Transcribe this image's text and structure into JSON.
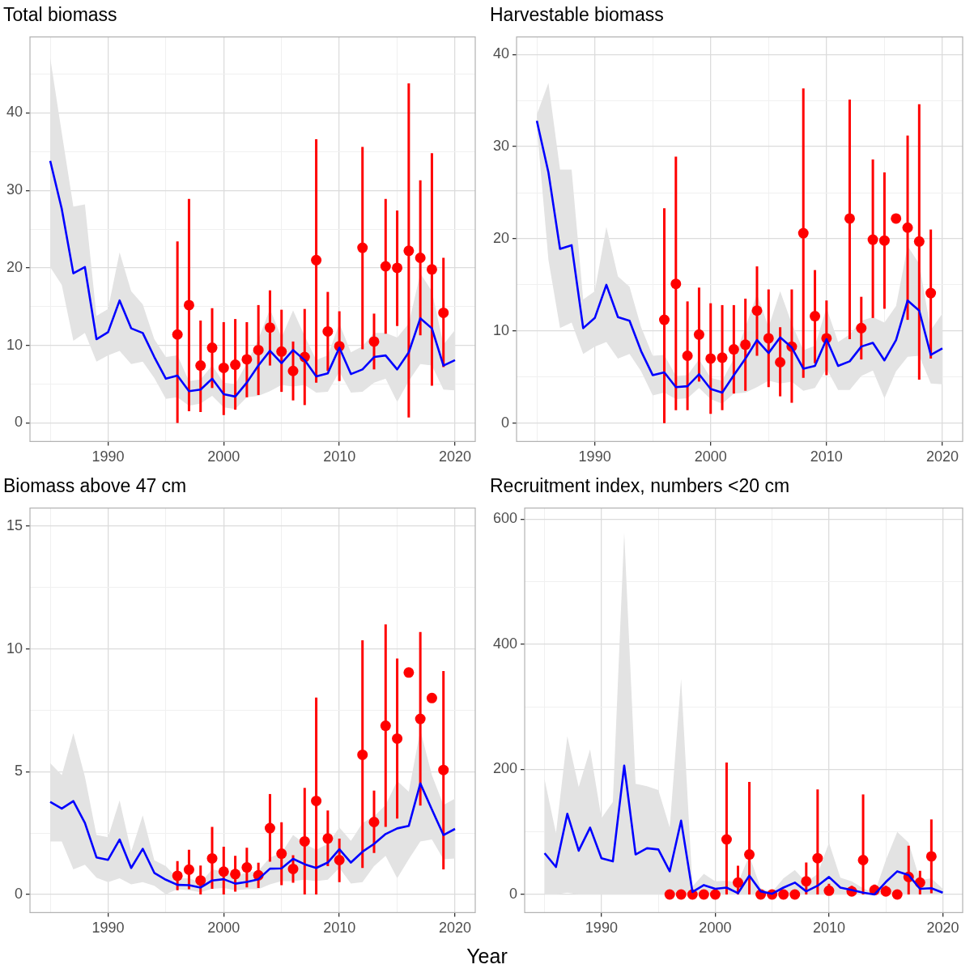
{
  "chart_data": [
    {
      "type": "line",
      "title": "Total biomass",
      "x": [
        1985,
        1986,
        1987,
        1988,
        1989,
        1990,
        1991,
        1992,
        1993,
        1994,
        1995,
        1996,
        1997,
        1998,
        1999,
        2000,
        2001,
        2002,
        2003,
        2004,
        2005,
        2006,
        2007,
        2008,
        2009,
        2010,
        2011,
        2012,
        2013,
        2014,
        2015,
        2016,
        2017,
        2018,
        2019,
        2020
      ],
      "xlim": [
        1983.25,
        2021.75
      ],
      "xticks": [
        {
          "value": 1985,
          "label": null
        },
        1990,
        {
          "value": 1995,
          "label": null
        },
        2000,
        {
          "value": 2005,
          "label": null
        },
        2010,
        {
          "value": 2015,
          "label": null
        },
        2020
      ],
      "ylim": [
        -2.4,
        49.8
      ],
      "yticks": [
        0,
        {
          "value": 5,
          "label": null
        },
        10,
        {
          "value": 15,
          "label": null
        },
        20,
        {
          "value": 25,
          "label": null
        },
        30,
        {
          "value": 35,
          "label": null
        },
        40,
        {
          "value": 45,
          "label": null
        }
      ],
      "grid": true,
      "series": [
        {
          "color": "#0000ff",
          "values": [
            33.8,
            27.6,
            19.3,
            20.1,
            10.8,
            11.7,
            15.8,
            12.2,
            11.6,
            8.5,
            5.7,
            6.1,
            4.1,
            4.3,
            5.7,
            3.7,
            3.4,
            5.2,
            7.4,
            9.3,
            7.7,
            9.4,
            8.1,
            6.0,
            6.4,
            9.7,
            6.3,
            6.9,
            8.5,
            8.7,
            6.9,
            9.1,
            13.5,
            12.2,
            7.4,
            8.1
          ],
          "upper": [
            47.1,
            37.4,
            27.9,
            28.2,
            13.8,
            14.7,
            22.0,
            17.0,
            15.3,
            10.8,
            8.5,
            8.7,
            5.4,
            5.6,
            7.4,
            5.2,
            5.0,
            7.7,
            10.8,
            14.7,
            11.0,
            14.5,
            11.2,
            8.1,
            8.7,
            12.8,
            9.1,
            9.9,
            11.6,
            11.6,
            11.0,
            12.8,
            19.3,
            17.0,
            10.1,
            12.0
          ],
          "lower": [
            20.1,
            17.8,
            10.6,
            11.6,
            7.9,
            8.7,
            9.3,
            7.6,
            7.9,
            5.8,
            3.1,
            3.3,
            2.2,
            2.5,
            3.5,
            2.0,
            1.8,
            3.3,
            3.5,
            4.1,
            4.9,
            4.7,
            4.9,
            3.9,
            4.0,
            6.6,
            3.9,
            4.0,
            5.2,
            5.7,
            2.7,
            5.4,
            7.6,
            7.4,
            4.3,
            4.2
          ]
        },
        {
          "type": "scatter",
          "marker": "circle",
          "color": "#ff0000",
          "x": [
            1996,
            1997,
            1998,
            1999,
            2000,
            2001,
            2002,
            2003,
            2004,
            2005,
            2006,
            2007,
            2008,
            2009,
            2010,
            2012,
            2013,
            2014,
            2015,
            2016,
            2017,
            2018,
            2019
          ],
          "values": [
            11.4,
            15.2,
            7.4,
            9.7,
            7.1,
            7.5,
            8.2,
            9.4,
            12.3,
            9.2,
            6.7,
            8.5,
            21.0,
            11.8,
            9.9,
            22.6,
            10.5,
            20.2,
            20.0,
            22.2,
            21.3,
            19.8,
            14.2
          ],
          "errors": [
            [
              0,
              23.4
            ],
            [
              1.5,
              28.9
            ],
            [
              1.4,
              13.2
            ],
            [
              4.5,
              14.8
            ],
            [
              1.0,
              13.0
            ],
            [
              1.7,
              13.4
            ],
            [
              3.3,
              13.0
            ],
            [
              3.6,
              15.2
            ],
            [
              7.4,
              17.1
            ],
            [
              4.0,
              14.6
            ],
            [
              2.9,
              10.5
            ],
            [
              2.3,
              14.7
            ],
            [
              5.2,
              36.6
            ],
            [
              6.7,
              16.9
            ],
            [
              5.4,
              14.4
            ],
            [
              9.5,
              35.6
            ],
            [
              6.9,
              14.1
            ],
            [
              11.5,
              28.9
            ],
            [
              12.5,
              27.4
            ],
            [
              0.7,
              43.8
            ],
            [
              11.3,
              31.3
            ],
            [
              4.8,
              34.8
            ],
            [
              7.2,
              21.3
            ]
          ]
        }
      ]
    },
    {
      "type": "line",
      "title": "Harvestable biomass",
      "x": [
        1985,
        1986,
        1987,
        1988,
        1989,
        1990,
        1991,
        1992,
        1993,
        1994,
        1995,
        1996,
        1997,
        1998,
        1999,
        2000,
        2001,
        2002,
        2003,
        2004,
        2005,
        2006,
        2007,
        2008,
        2009,
        2010,
        2011,
        2012,
        2013,
        2014,
        2015,
        2016,
        2017,
        2018,
        2019,
        2020
      ],
      "xlim": [
        1983.25,
        2021.75
      ],
      "xticks": [
        {
          "value": 1985,
          "label": null
        },
        1990,
        {
          "value": 1995,
          "label": null
        },
        2000,
        {
          "value": 2005,
          "label": null
        },
        2010,
        {
          "value": 2015,
          "label": null
        },
        2020
      ],
      "ylim": [
        -2.0,
        41.9
      ],
      "yticks": [
        0,
        {
          "value": 5,
          "label": null
        },
        10,
        {
          "value": 15,
          "label": null
        },
        20,
        {
          "value": 25,
          "label": null
        },
        30,
        {
          "value": 35,
          "label": null
        },
        40
      ],
      "grid": true,
      "series": [
        {
          "color": "#0000ff",
          "values": [
            32.8,
            27.2,
            18.9,
            19.3,
            10.3,
            11.4,
            15.0,
            11.5,
            11.1,
            7.8,
            5.2,
            5.5,
            3.9,
            4.0,
            5.3,
            3.7,
            3.3,
            5.2,
            7.0,
            9.0,
            7.6,
            9.3,
            8.2,
            5.9,
            6.2,
            9.1,
            6.2,
            6.7,
            8.3,
            8.7,
            6.8,
            9.0,
            13.3,
            12.2,
            7.4,
            8.1
          ],
          "upper": [
            33.5,
            36.9,
            27.5,
            27.5,
            13.4,
            14.3,
            21.3,
            15.9,
            14.8,
            10.4,
            7.3,
            7.4,
            5.1,
            5.2,
            6.9,
            4.9,
            4.6,
            7.0,
            10.4,
            14.0,
            10.4,
            14.3,
            10.8,
            7.9,
            8.4,
            12.5,
            8.8,
            9.6,
            11.1,
            11.5,
            10.9,
            12.7,
            19.2,
            17.3,
            10.1,
            11.9
          ],
          "lower": [
            32.2,
            17.7,
            10.3,
            10.9,
            7.5,
            8.3,
            8.8,
            7.0,
            7.5,
            5.6,
            3.0,
            3.3,
            2.6,
            2.7,
            3.8,
            2.6,
            2.1,
            3.2,
            3.3,
            3.9,
            4.6,
            4.3,
            4.5,
            3.5,
            3.8,
            5.9,
            3.6,
            3.6,
            5.1,
            5.7,
            2.7,
            5.6,
            7.2,
            7.3,
            4.3,
            4.2
          ]
        },
        {
          "type": "scatter",
          "marker": "circle",
          "color": "#ff0000",
          "x": [
            1996,
            1997,
            1998,
            1999,
            2000,
            2001,
            2002,
            2003,
            2004,
            2005,
            2006,
            2007,
            2008,
            2009,
            2010,
            2012,
            2013,
            2014,
            2015,
            2016,
            2017,
            2018,
            2019
          ],
          "values": [
            11.2,
            15.1,
            7.3,
            9.6,
            7.0,
            7.1,
            8.0,
            8.5,
            12.2,
            9.2,
            6.6,
            8.3,
            20.6,
            11.6,
            9.2,
            22.2,
            10.3,
            19.9,
            19.8,
            22.2,
            21.2,
            19.7,
            14.1
          ],
          "errors": [
            [
              0,
              23.3
            ],
            [
              1.4,
              28.9
            ],
            [
              1.4,
              13.2
            ],
            [
              4.5,
              14.7
            ],
            [
              1.0,
              13.0
            ],
            [
              1.4,
              12.8
            ],
            [
              3.2,
              12.8
            ],
            [
              3.5,
              13.5
            ],
            [
              7.3,
              17.0
            ],
            [
              3.9,
              14.5
            ],
            [
              2.9,
              10.4
            ],
            [
              2.2,
              14.5
            ],
            [
              4.9,
              36.3
            ],
            [
              6.5,
              16.6
            ],
            [
              5.2,
              13.3
            ],
            [
              9.1,
              35.1
            ],
            [
              6.9,
              13.7
            ],
            [
              11.4,
              28.6
            ],
            [
              12.4,
              27.2
            ],
            null,
            [
              11.2,
              31.2
            ],
            [
              4.7,
              34.6
            ],
            [
              7.0,
              21.0
            ]
          ]
        }
      ]
    },
    {
      "type": "line",
      "title": "Biomass above 47 cm",
      "xlabel": "Year",
      "x": [
        1985,
        1986,
        1987,
        1988,
        1989,
        1990,
        1991,
        1992,
        1993,
        1994,
        1995,
        1996,
        1997,
        1998,
        1999,
        2000,
        2001,
        2002,
        2003,
        2004,
        2005,
        2006,
        2007,
        2008,
        2009,
        2010,
        2011,
        2012,
        2013,
        2014,
        2015,
        2016,
        2017,
        2018,
        2019,
        2020
      ],
      "xlim": [
        1983.25,
        2021.75
      ],
      "xticks": [
        {
          "value": 1985,
          "label": null
        },
        1990,
        {
          "value": 1995,
          "label": null
        },
        2000,
        {
          "value": 2005,
          "label": null
        },
        2010,
        {
          "value": 2015,
          "label": null
        },
        2020
      ],
      "ylim": [
        -0.74,
        15.74
      ],
      "yticks": [
        0,
        {
          "value": 2.5,
          "label": null
        },
        5,
        {
          "value": 7.5,
          "label": null
        },
        10,
        {
          "value": 12.5,
          "label": null
        },
        15
      ],
      "grid": true,
      "series": [
        {
          "color": "#0000ff",
          "values": [
            3.77,
            3.5,
            3.8,
            2.91,
            1.51,
            1.41,
            2.24,
            1.08,
            1.86,
            0.88,
            0.6,
            0.39,
            0.38,
            0.28,
            0.57,
            0.62,
            0.44,
            0.51,
            0.62,
            1.05,
            1.06,
            1.45,
            1.23,
            1.08,
            1.3,
            1.84,
            1.3,
            1.74,
            2.06,
            2.46,
            2.69,
            2.79,
            4.52,
            3.46,
            2.42,
            2.67
          ],
          "upper": [
            5.35,
            4.86,
            6.57,
            4.8,
            2.42,
            2.33,
            3.83,
            1.75,
            3.22,
            1.39,
            1.15,
            0.66,
            0.66,
            0.48,
            1.02,
            0.94,
            0.74,
            0.9,
            0.96,
            1.51,
            1.69,
            2.42,
            2.06,
            1.82,
            2.06,
            2.73,
            2.18,
            2.91,
            3.18,
            3.64,
            4.62,
            4.19,
            6.69,
            4.86,
            3.64,
            3.91
          ],
          "lower": [
            2.16,
            2.16,
            1.02,
            1.21,
            0.68,
            0.5,
            0.66,
            0.41,
            0.5,
            0.35,
            0.01,
            0.21,
            0.17,
            0.09,
            0.23,
            0.26,
            0.17,
            0.21,
            0.21,
            0.41,
            0.54,
            0.54,
            0.6,
            0.54,
            0.6,
            1.08,
            0.44,
            0.5,
            1.15,
            1.57,
            0.66,
            1.43,
            2.16,
            2.24,
            1.43,
            1.47
          ]
        },
        {
          "type": "scatter",
          "marker": "circle",
          "color": "#ff0000",
          "x": [
            1996,
            1997,
            1998,
            1999,
            2000,
            2001,
            2002,
            2003,
            2004,
            2005,
            2006,
            2007,
            2008,
            2009,
            2010,
            2012,
            2013,
            2014,
            2015,
            2016,
            2017,
            2018,
            2019
          ],
          "values": [
            0.76,
            1.01,
            0.57,
            1.47,
            0.93,
            0.83,
            1.1,
            0.78,
            2.7,
            1.66,
            1.04,
            2.16,
            3.81,
            2.28,
            1.4,
            5.69,
            2.95,
            6.87,
            6.35,
            9.04,
            7.15,
            8.0,
            5.07
          ],
          "errors": [
            [
              0.17,
              1.36
            ],
            [
              0.21,
              1.82
            ],
            [
              0,
              1.18
            ],
            [
              0.23,
              2.75
            ],
            [
              0,
              1.94
            ],
            [
              0.11,
              1.57
            ],
            [
              0.29,
              1.9
            ],
            [
              0.26,
              1.29
            ],
            [
              1.33,
              4.09
            ],
            [
              0.38,
              2.94
            ],
            [
              0.48,
              1.6
            ],
            [
              0,
              4.34
            ],
            [
              0,
              8.02
            ],
            [
              1.15,
              3.42
            ],
            [
              0.5,
              2.27
            ],
            [
              1.08,
              10.35
            ],
            [
              1.69,
              4.23
            ],
            [
              2.75,
              11.0
            ],
            [
              3.09,
              9.61
            ],
            null,
            [
              3.62,
              10.69
            ],
            null,
            [
              1.02,
              9.1
            ]
          ]
        }
      ]
    },
    {
      "type": "line",
      "title": "Recruitment index, numbers <20 cm",
      "x": [
        1985,
        1986,
        1987,
        1988,
        1989,
        1990,
        1991,
        1992,
        1993,
        1994,
        1995,
        1996,
        1997,
        1998,
        1999,
        2000,
        2001,
        2002,
        2003,
        2004,
        2005,
        2006,
        2007,
        2008,
        2009,
        2010,
        2011,
        2012,
        2013,
        2014,
        2015,
        2016,
        2017,
        2018,
        2019,
        2020
      ],
      "xlim": [
        1983.25,
        2021.75
      ],
      "xticks": [
        {
          "value": 1985,
          "label": null
        },
        1990,
        {
          "value": 1995,
          "label": null
        },
        2000,
        {
          "value": 2005,
          "label": null
        },
        2010,
        {
          "value": 2015,
          "label": null
        },
        2020
      ],
      "ylim": [
        -29,
        618
      ],
      "yticks": [
        0,
        {
          "value": 100,
          "label": null
        },
        200,
        {
          "value": 300,
          "label": null
        },
        400,
        {
          "value": 500,
          "label": null
        },
        600
      ],
      "grid": true,
      "series": [
        {
          "color": "#0000ff",
          "values": [
            66,
            44,
            129,
            70,
            107,
            58,
            53,
            206,
            64,
            74,
            72,
            37,
            118,
            4,
            15,
            9,
            11,
            2,
            30,
            5,
            1,
            11,
            19,
            5,
            14,
            28,
            11,
            7,
            3,
            0,
            20,
            37,
            31,
            9,
            10,
            3
          ],
          "upper": [
            184,
            98,
            253,
            172,
            232,
            122,
            148,
            579,
            177,
            173,
            167,
            107,
            345,
            13,
            33,
            21,
            22,
            19,
            62,
            10,
            4,
            26,
            39,
            19,
            33,
            83,
            27,
            21,
            10,
            2,
            55,
            100,
            83,
            23,
            26,
            9
          ],
          "lower": [
            0,
            0,
            3,
            0,
            0,
            0,
            0,
            0,
            0,
            0,
            0,
            0,
            0,
            0,
            0,
            0,
            0,
            0,
            0,
            0,
            0,
            0,
            0,
            0,
            0,
            0,
            0,
            0,
            0,
            0,
            0,
            0,
            0,
            0,
            0,
            0
          ]
        },
        {
          "type": "scatter",
          "marker": "circle",
          "color": "#ff0000",
          "x": [
            1996,
            1997,
            1998,
            1999,
            2000,
            2001,
            2002,
            2003,
            2004,
            2005,
            2006,
            2007,
            2008,
            2009,
            2010,
            2012,
            2013,
            2014,
            2015,
            2016,
            2017,
            2018,
            2019
          ],
          "values": [
            0,
            0,
            0,
            0,
            0,
            88,
            19,
            64,
            0,
            0,
            0,
            0,
            21,
            58,
            6,
            5,
            55,
            7,
            5,
            0,
            28,
            19,
            61
          ],
          "errors": [
            null,
            null,
            null,
            null,
            null,
            [
              0,
              211
            ],
            [
              0,
              46
            ],
            [
              0,
              180
            ],
            null,
            null,
            null,
            null,
            [
              0,
              51
            ],
            [
              0,
              168
            ],
            [
              0,
              17
            ],
            [
              0,
              14
            ],
            [
              0,
              160
            ],
            [
              0,
              16
            ],
            [
              0,
              14
            ],
            null,
            [
              0,
              78
            ],
            [
              0,
              38
            ],
            [
              2,
              120
            ]
          ]
        }
      ]
    }
  ]
}
